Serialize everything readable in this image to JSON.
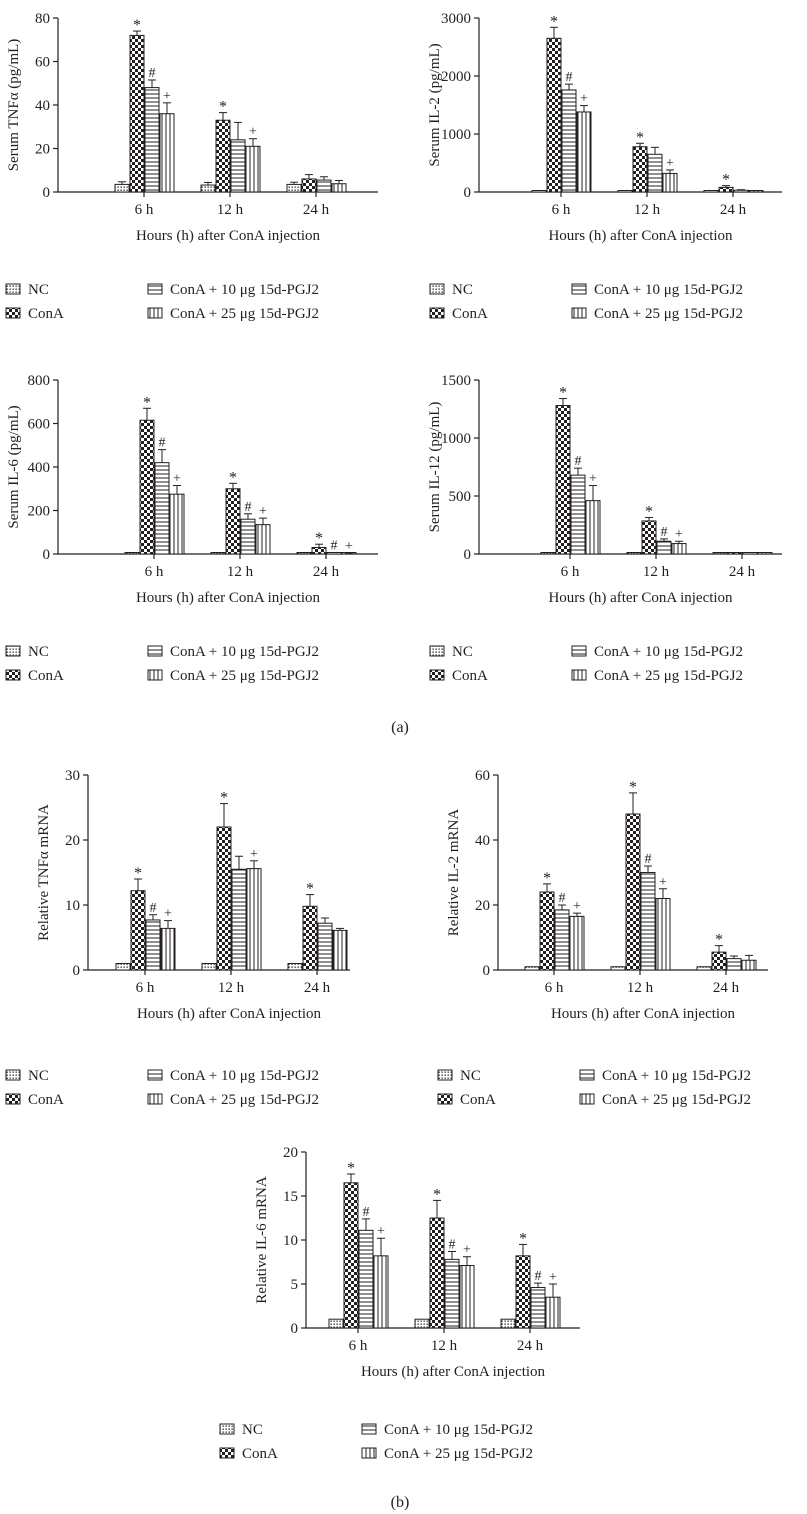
{
  "panel_labels": [
    "(a)",
    "(b)"
  ],
  "legend": {
    "items": [
      "NC",
      "ConA",
      "ConA + 10 μg 15d-PGJ2",
      "ConA + 25 μg 15d-PGJ2"
    ],
    "patterns": [
      "dots",
      "checker",
      "horizontal-lines",
      "vertical-lines"
    ]
  },
  "colors": {
    "ink": "#231f20",
    "background": "#ffffff"
  },
  "chart_data": [
    {
      "id": "tnf-serum",
      "type": "bar",
      "ylabel": "Serum TNFα (pg/mL)",
      "xlabel": "Hours (h) after ConA injection",
      "categories": [
        "6 h",
        "12 h",
        "24 h"
      ],
      "yticks": [
        "0",
        "20",
        "40",
        "60",
        "80"
      ],
      "ylim": [
        0,
        80
      ],
      "series": [
        {
          "name": "NC",
          "values": [
            3.5,
            3.2,
            3.5
          ],
          "errors": [
            1.2,
            1.2,
            1
          ],
          "marks": [
            "",
            "",
            ""
          ]
        },
        {
          "name": "ConA",
          "values": [
            72,
            33,
            6
          ],
          "errors": [
            2,
            3.5,
            2
          ],
          "marks": [
            "*",
            "*",
            ""
          ]
        },
        {
          "name": "ConA + 10 μg 15d-PGJ2",
          "values": [
            48,
            24,
            5.5
          ],
          "errors": [
            3.5,
            8,
            1.5
          ],
          "marks": [
            "#",
            "",
            ""
          ]
        },
        {
          "name": "ConA + 25 μg 15d-PGJ2",
          "values": [
            36,
            21,
            3.8
          ],
          "errors": [
            5,
            3.5,
            1.5
          ],
          "marks": [
            "+",
            "+",
            ""
          ]
        }
      ]
    },
    {
      "id": "il2-serum",
      "type": "bar",
      "ylabel": "Serum IL-2 (pg/mL)",
      "xlabel": "Hours (h) after ConA injection",
      "categories": [
        "6 h",
        "12 h",
        "24 h"
      ],
      "yticks": [
        "0",
        "1000",
        "2000",
        "3000"
      ],
      "ylim": [
        0,
        3000
      ],
      "series": [
        {
          "name": "NC",
          "values": [
            15,
            10,
            10
          ],
          "errors": [
            0,
            0,
            0
          ],
          "marks": [
            "",
            "",
            ""
          ]
        },
        {
          "name": "ConA",
          "values": [
            2650,
            780,
            80
          ],
          "errors": [
            190,
            60,
            30
          ],
          "marks": [
            "*",
            "*",
            "*"
          ]
        },
        {
          "name": "ConA + 10 μg 15d-PGJ2",
          "values": [
            1760,
            650,
            30
          ],
          "errors": [
            100,
            120,
            10
          ],
          "marks": [
            "#",
            "",
            ""
          ]
        },
        {
          "name": "ConA + 25 μg 15d-PGJ2",
          "values": [
            1380,
            320,
            20
          ],
          "errors": [
            110,
            60,
            5
          ],
          "marks": [
            "+",
            "+",
            ""
          ]
        }
      ]
    },
    {
      "id": "il6-serum",
      "type": "bar",
      "ylabel": "Serum IL-6 (pg/mL)",
      "xlabel": "Hours (h) after ConA injection",
      "categories": [
        "6 h",
        "12 h",
        "24 h"
      ],
      "yticks": [
        "0",
        "200",
        "400",
        "600",
        "800"
      ],
      "ylim": [
        0,
        800
      ],
      "series": [
        {
          "name": "NC",
          "values": [
            3,
            3,
            3
          ],
          "errors": [
            0,
            0,
            0
          ],
          "marks": [
            "",
            "",
            ""
          ]
        },
        {
          "name": "ConA",
          "values": [
            615,
            300,
            30
          ],
          "errors": [
            55,
            25,
            15
          ],
          "marks": [
            "*",
            "*",
            "*"
          ]
        },
        {
          "name": "ConA + 10 μg 15d-PGJ2",
          "values": [
            420,
            160,
            5
          ],
          "errors": [
            60,
            25,
            2
          ],
          "marks": [
            "#",
            "#",
            "#"
          ]
        },
        {
          "name": "ConA + 25 μg 15d-PGJ2",
          "values": [
            275,
            135,
            3
          ],
          "errors": [
            40,
            30,
            2
          ],
          "marks": [
            "+",
            "+",
            "+"
          ]
        }
      ]
    },
    {
      "id": "il12-serum",
      "type": "bar",
      "ylabel": "Serum IL-12 (pg/mL)",
      "xlabel": "Hours (h) after ConA injection",
      "categories": [
        "6 h",
        "12 h",
        "24 h"
      ],
      "yticks": [
        "0",
        "500",
        "1000",
        "1500"
      ],
      "ylim": [
        0,
        1500
      ],
      "series": [
        {
          "name": "NC",
          "values": [
            3,
            3,
            3
          ],
          "errors": [
            0,
            0,
            0
          ],
          "marks": [
            "",
            "",
            ""
          ]
        },
        {
          "name": "ConA",
          "values": [
            1280,
            285,
            3
          ],
          "errors": [
            60,
            30,
            0
          ],
          "marks": [
            "*",
            "*",
            ""
          ]
        },
        {
          "name": "ConA + 10 μg 15d-PGJ2",
          "values": [
            680,
            110,
            3
          ],
          "errors": [
            60,
            20,
            0
          ],
          "marks": [
            "#",
            "#",
            ""
          ]
        },
        {
          "name": "ConA + 25 μg 15d-PGJ2",
          "values": [
            460,
            90,
            3
          ],
          "errors": [
            130,
            20,
            0
          ],
          "marks": [
            "+",
            "+",
            ""
          ]
        }
      ]
    },
    {
      "id": "tnf-mrna",
      "type": "bar",
      "ylabel": "Relative TNFα mRNA",
      "xlabel": "Hours (h) after ConA injection",
      "categories": [
        "6 h",
        "12 h",
        "24 h"
      ],
      "yticks": [
        "0",
        "10",
        "20",
        "30"
      ],
      "ylim": [
        0,
        30
      ],
      "series": [
        {
          "name": "NC",
          "values": [
            1,
            1,
            1
          ],
          "errors": [
            0,
            0,
            0
          ],
          "marks": [
            "",
            "",
            ""
          ]
        },
        {
          "name": "ConA",
          "values": [
            12.2,
            22,
            9.8
          ],
          "errors": [
            1.8,
            3.6,
            1.8
          ],
          "marks": [
            "*",
            "*",
            "*"
          ]
        },
        {
          "name": "ConA + 10 μg 15d-PGJ2",
          "values": [
            7.7,
            15.5,
            7.2
          ],
          "errors": [
            0.8,
            2,
            0.8
          ],
          "marks": [
            "#",
            "",
            ""
          ]
        },
        {
          "name": "ConA + 25 μg 15d-PGJ2",
          "values": [
            6.4,
            15.6,
            6.1
          ],
          "errors": [
            1.2,
            1.2,
            0.3
          ],
          "marks": [
            "+",
            "+",
            ""
          ]
        }
      ]
    },
    {
      "id": "il2-mrna",
      "type": "bar",
      "ylabel": "Relative IL-2 mRNA",
      "xlabel": "Hours (h) after ConA injection",
      "categories": [
        "6 h",
        "12 h",
        "24 h"
      ],
      "yticks": [
        "0",
        "20",
        "40",
        "60"
      ],
      "ylim": [
        0,
        60
      ],
      "series": [
        {
          "name": "NC",
          "values": [
            1,
            1,
            1
          ],
          "errors": [
            0,
            0,
            0
          ],
          "marks": [
            "",
            "",
            ""
          ]
        },
        {
          "name": "ConA",
          "values": [
            24,
            48,
            5.5
          ],
          "errors": [
            2.5,
            6.5,
            2
          ],
          "marks": [
            "*",
            "*",
            "*"
          ]
        },
        {
          "name": "ConA + 10 μg 15d-PGJ2",
          "values": [
            18.5,
            30,
            3.5
          ],
          "errors": [
            1.5,
            2,
            0.8
          ],
          "marks": [
            "#",
            "#",
            ""
          ]
        },
        {
          "name": "ConA + 25 μg 15d-PGJ2",
          "values": [
            16.5,
            22,
            3
          ],
          "errors": [
            1,
            3,
            1.5
          ],
          "marks": [
            "+",
            "+",
            ""
          ]
        }
      ]
    },
    {
      "id": "il6-mrna",
      "type": "bar",
      "ylabel": "Relative IL-6 mRNA",
      "xlabel": "Hours (h) after ConA injection",
      "categories": [
        "6 h",
        "12 h",
        "24 h"
      ],
      "yticks": [
        "0",
        "5",
        "10",
        "15",
        "20"
      ],
      "ylim": [
        0,
        20
      ],
      "series": [
        {
          "name": "NC",
          "values": [
            1,
            1,
            1
          ],
          "errors": [
            0,
            0,
            0
          ],
          "marks": [
            "",
            "",
            ""
          ]
        },
        {
          "name": "ConA",
          "values": [
            16.5,
            12.5,
            8.2
          ],
          "errors": [
            1,
            2,
            1.3
          ],
          "marks": [
            "*",
            "*",
            "*"
          ]
        },
        {
          "name": "ConA + 10 μg 15d-PGJ2",
          "values": [
            11.1,
            7.8,
            4.6
          ],
          "errors": [
            1.3,
            0.9,
            0.5
          ],
          "marks": [
            "#",
            "#",
            "#"
          ]
        },
        {
          "name": "ConA + 25 μg 15d-PGJ2",
          "values": [
            8.2,
            7.1,
            3.5
          ],
          "errors": [
            2,
            1,
            1.5
          ],
          "marks": [
            "+",
            "+",
            "+"
          ]
        }
      ]
    }
  ]
}
